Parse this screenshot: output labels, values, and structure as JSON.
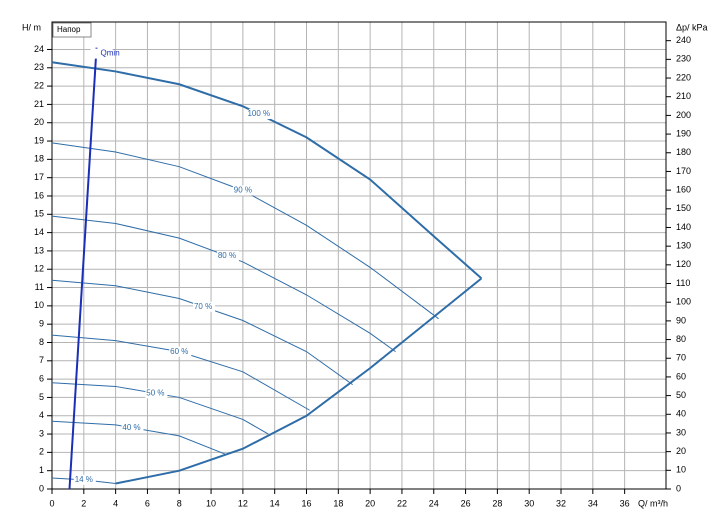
{
  "chart_data": {
    "type": "line",
    "legend_label": "Напор",
    "y_label": "H/ m",
    "y2_label": "Δp/ kPa",
    "x_label": "Q/ m³/h",
    "xlim": [
      0,
      38.6
    ],
    "ylim": [
      0,
      25.5
    ],
    "y2lim": [
      0,
      250
    ],
    "xticks": [
      0,
      2,
      4,
      6,
      8,
      10,
      12,
      14,
      16,
      18,
      20,
      22,
      24,
      26,
      28,
      30,
      32,
      34,
      36
    ],
    "yticks": [
      0,
      1,
      2,
      3,
      4,
      5,
      6,
      7,
      8,
      9,
      10,
      11,
      12,
      13,
      14,
      15,
      16,
      17,
      18,
      19,
      20,
      21,
      22,
      23,
      24
    ],
    "y2ticks": [
      0,
      10,
      20,
      30,
      40,
      50,
      60,
      70,
      80,
      90,
      100,
      110,
      120,
      130,
      140,
      150,
      160,
      170,
      180,
      190,
      200,
      210,
      220,
      230,
      240
    ],
    "grid": true,
    "series": [
      {
        "name": "100 %",
        "color": "#2f6da8",
        "x": [
          0,
          4,
          8,
          12,
          16,
          20,
          24,
          27
        ],
        "values": [
          23.3,
          22.8,
          22.1,
          20.9,
          19.2,
          16.9,
          13.8,
          11.5
        ]
      },
      {
        "name": "90 %",
        "color": "#2f6da8",
        "x": [
          0,
          4,
          8,
          12,
          16,
          20,
          24.3
        ],
        "values": [
          18.9,
          18.4,
          17.6,
          16.3,
          14.4,
          12.1,
          9.3
        ]
      },
      {
        "name": "80 %",
        "color": "#2f6da8",
        "x": [
          0,
          4,
          8,
          12,
          16,
          20,
          21.6
        ],
        "values": [
          14.9,
          14.5,
          13.7,
          12.4,
          10.6,
          8.5,
          7.5
        ]
      },
      {
        "name": "70 %",
        "color": "#2f6da8",
        "x": [
          0,
          4,
          8,
          12,
          16,
          18.9
        ],
        "values": [
          11.4,
          11.1,
          10.4,
          9.2,
          7.5,
          5.7
        ]
      },
      {
        "name": "60 %",
        "color": "#2f6da8",
        "x": [
          0,
          4,
          8,
          12,
          16.2
        ],
        "values": [
          8.4,
          8.1,
          7.5,
          6.4,
          4.3
        ]
      },
      {
        "name": "50 %",
        "color": "#2f6da8",
        "x": [
          0,
          4,
          8,
          12,
          13.6
        ],
        "values": [
          5.8,
          5.6,
          5.0,
          3.8,
          3.0
        ]
      },
      {
        "name": "40 %",
        "color": "#2f6da8",
        "x": [
          0,
          4,
          8,
          10.9
        ],
        "values": [
          3.7,
          3.5,
          2.9,
          1.9
        ]
      },
      {
        "name": "14 %",
        "color": "#2f6da8",
        "x": [
          0,
          2,
          4
        ],
        "values": [
          0.6,
          0.5,
          0.3
        ]
      },
      {
        "color": "#2f6da8",
        "x": [
          4,
          8,
          12,
          16,
          20,
          24,
          27
        ],
        "values": [
          0.3,
          1.0,
          2.2,
          4.0,
          6.6,
          9.4,
          11.5
        ]
      },
      {
        "name": "Qmin",
        "color": "#1a2fb5",
        "x": [
          1.1,
          2.8
        ],
        "values": [
          0,
          24.1
        ]
      }
    ]
  }
}
